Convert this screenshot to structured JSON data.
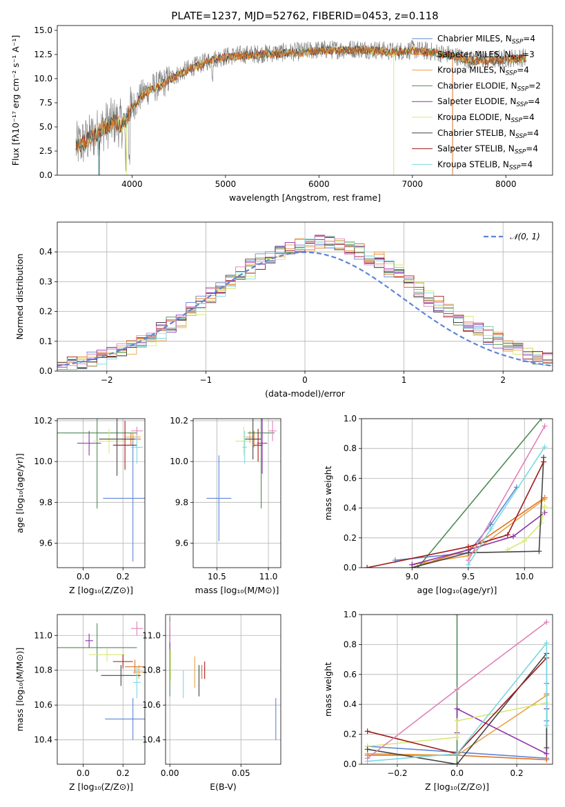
{
  "figure_title": "PLATE=1237, MJD=52762, FIBERID=0453, z=0.118",
  "colors": {
    "chabrier_miles": "#5b84d6",
    "salpeter_miles": "#e06f1f",
    "kroupa_miles": "#e8a040",
    "chabrier_elodie": "#4e8a55",
    "salpeter_elodie": "#8e30a8",
    "kroupa_elodie": "#d8e870",
    "chabrier_stelib": "#444444",
    "salpeter_stelib": "#a01818",
    "kroupa_stelib": "#7ad8e0",
    "pink": "#e080b8",
    "normal_fit": "#5b84d6",
    "data_grey": "#808080"
  },
  "chart_data": [
    {
      "id": "spectrum",
      "type": "line",
      "xlabel": "wavelength [Angstrom, rest frame]",
      "ylabel": "Flux [fλ10⁻¹⁷ erg cm⁻² s⁻¹ A⁻¹]",
      "xlim": [
        3200,
        8500
      ],
      "ylim": [
        0,
        15.5
      ],
      "xticks": [
        4000,
        5000,
        6000,
        7000,
        8000
      ],
      "yticks": [
        0.0,
        2.5,
        5.0,
        7.5,
        10.0,
        12.5,
        15.0
      ],
      "grid": false,
      "legend_position": "right",
      "legend": [
        {
          "label": "Chabrier MILES, N_SSP=4",
          "color_key": "chabrier_miles"
        },
        {
          "label": "Salpeter MILES, N_SSP=3",
          "color_key": "salpeter_miles"
        },
        {
          "label": "Kroupa MILES, N_SSP=4",
          "color_key": "kroupa_miles"
        },
        {
          "label": "Chabrier ELODIE, N_SSP=2",
          "color_key": "chabrier_elodie"
        },
        {
          "label": "Salpeter ELODIE, N_SSP=4",
          "color_key": "salpeter_elodie"
        },
        {
          "label": "Kroupa ELODIE, N_SSP=4",
          "color_key": "kroupa_elodie"
        },
        {
          "label": "Chabrier STELIB, N_SSP=4",
          "color_key": "chabrier_stelib"
        },
        {
          "label": "Salpeter STELIB, N_SSP=4",
          "color_key": "salpeter_stelib"
        },
        {
          "label": "Kroupa STELIB, N_SSP=4",
          "color_key": "kroupa_stelib"
        }
      ],
      "continuum": [
        [
          3400,
          3.0
        ],
        [
          3500,
          3.5
        ],
        [
          3600,
          4.2
        ],
        [
          3700,
          5.0
        ],
        [
          3800,
          5.6
        ],
        [
          3900,
          5.3
        ],
        [
          4000,
          7.0
        ],
        [
          4100,
          8.3
        ],
        [
          4200,
          9.0
        ],
        [
          4300,
          9.3
        ],
        [
          4400,
          10.0
        ],
        [
          4500,
          10.5
        ],
        [
          4600,
          11.0
        ],
        [
          4700,
          11.4
        ],
        [
          4800,
          11.8
        ],
        [
          4900,
          12.1
        ],
        [
          5000,
          12.3
        ],
        [
          5200,
          12.5
        ],
        [
          5400,
          12.6
        ],
        [
          5600,
          12.7
        ],
        [
          5800,
          12.8
        ],
        [
          6000,
          13.0
        ],
        [
          6200,
          13.0
        ],
        [
          6400,
          13.1
        ],
        [
          6600,
          13.0
        ],
        [
          6800,
          12.8
        ],
        [
          7000,
          13.0
        ],
        [
          7200,
          12.8
        ],
        [
          7400,
          12.5
        ],
        [
          7600,
          12.0
        ],
        [
          7800,
          11.9
        ],
        [
          8000,
          12.1
        ],
        [
          8200,
          12.2
        ]
      ]
    },
    {
      "id": "residuals",
      "type": "line",
      "xlabel": "(data-model)/error",
      "ylabel": "Normed distribution",
      "xlim": [
        -2.5,
        2.5
      ],
      "ylim": [
        0,
        0.5
      ],
      "xticks": [
        -2,
        -1,
        0,
        1,
        2
      ],
      "yticks": [
        0.0,
        0.1,
        0.2,
        0.3,
        0.4
      ],
      "grid": true,
      "legend_position": "top-right",
      "legend": [
        {
          "label": "𝒩(0, 1)",
          "color_key": "normal_fit"
        }
      ],
      "bin_width": 0.1
    },
    {
      "id": "age_vs_Z",
      "type": "scatter",
      "xlabel": "Z [log₁₀(Z/Z⊙)]",
      "ylabel": "age  [log₁₀(age/yr)]",
      "xlim": [
        -0.13,
        0.31
      ],
      "ylim": [
        9.48,
        10.21
      ],
      "xticks": [
        0.0,
        0.2
      ],
      "yticks": [
        9.6,
        9.8,
        10.0,
        10.2
      ],
      "grid": true,
      "points": [
        {
          "series": "chabrier_miles",
          "x": 0.25,
          "y": 9.82,
          "xerr": 0.15,
          "yerr": 0.31
        },
        {
          "series": "salpeter_miles",
          "x": 0.24,
          "y": 10.11,
          "xerr": 0.05,
          "yerr": 0.03
        },
        {
          "series": "kroupa_miles",
          "x": 0.25,
          "y": 10.12,
          "xerr": 0.04,
          "yerr": 0.02
        },
        {
          "series": "chabrier_elodie",
          "x": 0.07,
          "y": 10.14,
          "xerr": 0.2,
          "yerr": 0.37
        },
        {
          "series": "salpeter_elodie",
          "x": 0.03,
          "y": 10.09,
          "xerr": 0.06,
          "yerr": 0.06
        },
        {
          "series": "kroupa_elodie",
          "x": 0.13,
          "y": 10.1,
          "xerr": 0.08,
          "yerr": 0.06
        },
        {
          "series": "chabrier_stelib",
          "x": 0.17,
          "y": 10.11,
          "xerr": 0.09,
          "yerr": 0.18
        },
        {
          "series": "salpeter_stelib",
          "x": 0.21,
          "y": 10.08,
          "xerr": 0.06,
          "yerr": 0.12
        },
        {
          "series": "kroupa_stelib",
          "x": 0.27,
          "y": 10.07,
          "xerr": 0.03,
          "yerr": 0.08
        },
        {
          "series": "pink",
          "x": 0.27,
          "y": 10.15,
          "xerr": 0.03,
          "yerr": 0.02
        }
      ]
    },
    {
      "id": "age_vs_mass",
      "type": "scatter",
      "xlabel": "mass [log₁₀(M/M⊙)]",
      "ylabel": "",
      "xlim": [
        10.27,
        11.12
      ],
      "ylim": [
        9.48,
        10.21
      ],
      "xticks": [
        10.5,
        11.0
      ],
      "yticks": [
        9.6,
        9.8,
        10.0,
        10.2
      ],
      "grid": true,
      "points": [
        {
          "series": "chabrier_miles",
          "x": 10.52,
          "y": 9.82,
          "xerr": 0.12,
          "yerr": 0.21
        },
        {
          "series": "salpeter_miles",
          "x": 10.86,
          "y": 10.11,
          "xerr": 0.05,
          "yerr": 0.04
        },
        {
          "series": "kroupa_miles",
          "x": 10.82,
          "y": 10.12,
          "xerr": 0.04,
          "yerr": 0.03
        },
        {
          "series": "chabrier_elodie",
          "x": 10.93,
          "y": 10.14,
          "xerr": 0.13,
          "yerr": 0.37
        },
        {
          "series": "salpeter_elodie",
          "x": 10.94,
          "y": 10.09,
          "xerr": 0.05,
          "yerr": 0.15
        },
        {
          "series": "kroupa_elodie",
          "x": 10.76,
          "y": 10.1,
          "xerr": 0.08,
          "yerr": 0.07
        },
        {
          "series": "chabrier_stelib",
          "x": 10.85,
          "y": 10.11,
          "xerr": 0.08,
          "yerr": 0.1
        },
        {
          "series": "salpeter_stelib",
          "x": 10.9,
          "y": 10.08,
          "xerr": 0.04,
          "yerr": 0.08
        },
        {
          "series": "kroupa_stelib",
          "x": 10.77,
          "y": 10.07,
          "xerr": 0.02,
          "yerr": 0.08
        },
        {
          "series": "pink",
          "x": 11.04,
          "y": 10.15,
          "xerr": 0.04,
          "yerr": 0.05
        }
      ]
    },
    {
      "id": "weight_vs_age",
      "type": "line",
      "xlabel": "age  [log₁₀(age/yr)]",
      "ylabel": "mass weight",
      "xlim": [
        8.55,
        10.25
      ],
      "ylim": [
        0,
        1.0
      ],
      "xticks": [
        9.0,
        9.5,
        10.0
      ],
      "yticks": [
        0.0,
        0.2,
        0.4,
        0.6,
        0.8,
        1.0
      ],
      "grid": true,
      "series": [
        {
          "series": "chabrier_miles",
          "x": [
            8.85,
            9.5,
            9.7,
            9.93
          ],
          "y": [
            0.05,
            0.1,
            0.29,
            0.54
          ]
        },
        {
          "series": "salpeter_miles",
          "x": [
            9.0,
            9.5,
            10.18
          ],
          "y": [
            0.0,
            0.12,
            0.47
          ]
        },
        {
          "series": "kroupa_miles",
          "x": [
            9.0,
            9.5,
            10.18
          ],
          "y": [
            0.02,
            0.08,
            0.46
          ]
        },
        {
          "series": "chabrier_elodie",
          "x": [
            9.05,
            10.15
          ],
          "y": [
            0.0,
            1.0
          ]
        },
        {
          "series": "salpeter_elodie",
          "x": [
            9.0,
            9.5,
            9.9,
            10.18
          ],
          "y": [
            0.02,
            0.12,
            0.21,
            0.37
          ]
        },
        {
          "series": "kroupa_elodie",
          "x": [
            9.85,
            10.0,
            10.15,
            10.18
          ],
          "y": [
            0.12,
            0.18,
            0.3,
            0.41
          ]
        },
        {
          "series": "chabrier_stelib",
          "x": [
            9.0,
            9.5,
            10.13,
            10.17
          ],
          "y": [
            0.0,
            0.1,
            0.11,
            0.74
          ]
        },
        {
          "series": "salpeter_stelib",
          "x": [
            8.6,
            9.5,
            9.85,
            10.17
          ],
          "y": [
            0.0,
            0.14,
            0.22,
            0.71
          ]
        },
        {
          "series": "kroupa_stelib",
          "x": [
            9.5,
            9.7,
            10.18
          ],
          "y": [
            0.02,
            0.26,
            0.81
          ]
        },
        {
          "series": "pink",
          "x": [
            9.5,
            10.18
          ],
          "y": [
            0.05,
            0.95
          ]
        }
      ]
    },
    {
      "id": "mass_vs_Z",
      "type": "scatter",
      "xlabel": "Z [log₁₀(Z/Z⊙)]",
      "ylabel": "mass [log₁₀(M/M⊙)]",
      "xlim": [
        -0.13,
        0.31
      ],
      "ylim": [
        10.26,
        11.12
      ],
      "xticks": [
        0.0,
        0.2
      ],
      "yticks": [
        10.4,
        10.6,
        10.8,
        11.0
      ],
      "grid": true,
      "points": [
        {
          "series": "chabrier_miles",
          "x": 0.25,
          "y": 10.52,
          "xerr": 0.14,
          "yerr": 0.12
        },
        {
          "series": "salpeter_miles",
          "x": 0.26,
          "y": 10.82,
          "xerr": 0.05,
          "yerr": 0.04
        },
        {
          "series": "kroupa_miles",
          "x": 0.28,
          "y": 10.79,
          "xerr": 0.03,
          "yerr": 0.04
        },
        {
          "series": "chabrier_elodie",
          "x": 0.07,
          "y": 10.93,
          "xerr": 0.2,
          "yerr": 0.14
        },
        {
          "series": "salpeter_elodie",
          "x": 0.03,
          "y": 10.97,
          "xerr": 0.02,
          "yerr": 0.04
        },
        {
          "series": "kroupa_elodie",
          "x": 0.12,
          "y": 10.89,
          "xerr": 0.09,
          "yerr": 0.04
        },
        {
          "series": "chabrier_stelib",
          "x": 0.19,
          "y": 10.77,
          "xerr": 0.1,
          "yerr": 0.06
        },
        {
          "series": "salpeter_stelib",
          "x": 0.2,
          "y": 10.85,
          "xerr": 0.05,
          "yerr": 0.04
        },
        {
          "series": "kroupa_stelib",
          "x": 0.27,
          "y": 10.73,
          "xerr": 0.02,
          "yerr": 0.09
        },
        {
          "series": "pink",
          "x": 0.27,
          "y": 11.04,
          "xerr": 0.03,
          "yerr": 0.04
        }
      ]
    },
    {
      "id": "mass_vs_ebv",
      "type": "scatter",
      "xlabel": "E(B-V)",
      "ylabel": "",
      "xlim": [
        -0.003,
        0.078
      ],
      "ylim": [
        10.26,
        11.12
      ],
      "xticks": [
        0.0,
        0.05
      ],
      "yticks": [
        10.4,
        10.6,
        10.8,
        11.0
      ],
      "grid": true,
      "points": [
        {
          "series": "chabrier_miles",
          "x": 0.0745,
          "y": 10.52,
          "xerr": 0,
          "yerr": 0.12
        },
        {
          "series": "salpeter_miles",
          "x": 0.0225,
          "y": 10.79,
          "xerr": 0,
          "yerr": 0.04
        },
        {
          "series": "kroupa_miles",
          "x": 0.0175,
          "y": 10.79,
          "xerr": 0,
          "yerr": 0.09
        },
        {
          "series": "chabrier_elodie",
          "x": 0.0,
          "y": 10.88,
          "xerr": 0,
          "yerr": 0.23
        },
        {
          "series": "salpeter_elodie",
          "x": 0.0,
          "y": 10.98,
          "xerr": 0,
          "yerr": 0.06
        },
        {
          "series": "kroupa_elodie",
          "x": 0.0005,
          "y": 10.83,
          "xerr": 0,
          "yerr": 0.09
        },
        {
          "series": "chabrier_stelib",
          "x": 0.0205,
          "y": 10.74,
          "xerr": 0,
          "yerr": 0.09
        },
        {
          "series": "salpeter_stelib",
          "x": 0.0245,
          "y": 10.8,
          "xerr": 0,
          "yerr": 0.05
        },
        {
          "series": "kroupa_stelib",
          "x": 0.0095,
          "y": 10.72,
          "xerr": 0,
          "yerr": 0.08
        },
        {
          "series": "pink",
          "x": 0.0,
          "y": 11.02,
          "xerr": 0,
          "yerr": 0.06
        }
      ]
    },
    {
      "id": "weight_vs_Z",
      "type": "line",
      "xlabel": "Z [log₁₀(Z/Z⊙)]",
      "ylabel": "mass weight",
      "xlim": [
        -0.32,
        0.32
      ],
      "ylim": [
        0,
        1.0
      ],
      "xticks": [
        -0.2,
        0.0,
        0.2
      ],
      "yticks": [
        0.0,
        0.2,
        0.4,
        0.6,
        0.8,
        1.0
      ],
      "grid": true,
      "series": [
        {
          "series": "chabrier_miles",
          "x": [
            -0.3,
            0.0,
            0.3,
            0.3,
            0.3
          ],
          "y": [
            0.12,
            0.08,
            0.04,
            0.29,
            0.54
          ]
        },
        {
          "series": "salpeter_miles",
          "x": [
            -0.3,
            0.0,
            0.3,
            0.3
          ],
          "y": [
            0.06,
            0.06,
            0.03,
            0.47
          ]
        },
        {
          "series": "kroupa_miles",
          "x": [
            -0.3,
            0.0,
            0.3
          ],
          "y": [
            0.07,
            0.06,
            0.46
          ]
        },
        {
          "series": "chabrier_elodie",
          "x": [
            0.0,
            0.0
          ],
          "y": [
            0.0,
            1.0
          ]
        },
        {
          "series": "salpeter_elodie",
          "x": [
            0.0,
            0.0,
            0.3,
            0.3
          ],
          "y": [
            0.21,
            0.37,
            0.07,
            0.37
          ]
        },
        {
          "series": "kroupa_elodie",
          "x": [
            -0.3,
            0.0,
            0.0,
            0.3
          ],
          "y": [
            0.12,
            0.18,
            0.29,
            0.41
          ]
        },
        {
          "series": "chabrier_stelib",
          "x": [
            -0.3,
            0.0,
            0.3,
            0.3
          ],
          "y": [
            0.1,
            0.0,
            0.74,
            0.11
          ]
        },
        {
          "series": "salpeter_stelib",
          "x": [
            -0.3,
            0.0,
            0.3
          ],
          "y": [
            0.22,
            0.07,
            0.71
          ]
        },
        {
          "series": "kroupa_stelib",
          "x": [
            -0.3,
            0.0,
            0.3,
            0.3
          ],
          "y": [
            0.02,
            0.07,
            0.81,
            0.26
          ]
        },
        {
          "series": "pink",
          "x": [
            -0.3,
            0.0,
            0.3
          ],
          "y": [
            0.04,
            0.5,
            0.95
          ]
        }
      ]
    }
  ]
}
